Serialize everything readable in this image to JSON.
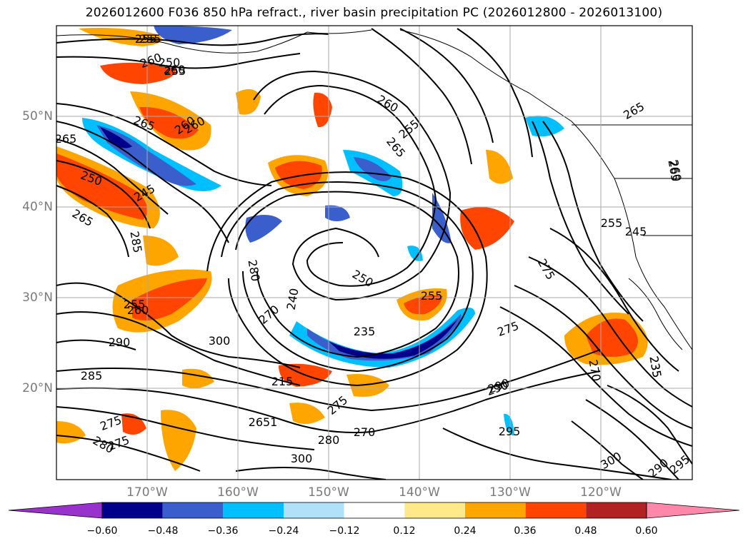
{
  "title": "2026012600 F036 850 hPa refract., river basin precipitation PC (2026012800 - 2026013100)",
  "lat_labels": [
    "50°N",
    "40°N",
    "30°N",
    "20°N"
  ],
  "lon_labels": [
    "170°W",
    "160°W",
    "150°W",
    "140°W",
    "130°W",
    "120°W"
  ],
  "colorbar": {
    "ticks": [
      "−0.60",
      "−0.48",
      "−0.36",
      "−0.24",
      "−0.12",
      "0.12",
      "0.24",
      "0.36",
      "0.48",
      "0.60"
    ],
    "colors": [
      "#9932cc",
      "#00008b",
      "#3a5fcd",
      "#00bfff",
      "#afe1fa",
      "#ffffff",
      "#ffe98a",
      "#ffa500",
      "#ff4500",
      "#b22222",
      "#ff88aa"
    ]
  },
  "contour_labels": [
    "255",
    "260",
    "255",
    "250",
    "260",
    "265",
    "260",
    "255",
    "250",
    "245",
    "265",
    "285",
    "280",
    "240",
    "250",
    "255",
    "260",
    "235",
    "275",
    "265",
    "260",
    "265",
    "255",
    "245",
    "260",
    "235",
    "255",
    "265",
    "300",
    "290",
    "255",
    "260",
    "235",
    "285",
    "275",
    "280",
    "290",
    "275",
    "275",
    "270",
    "2651",
    "270",
    "215",
    "280",
    "275",
    "295",
    "300",
    "270",
    "290",
    "265",
    "295",
    "300",
    "290"
  ]
}
